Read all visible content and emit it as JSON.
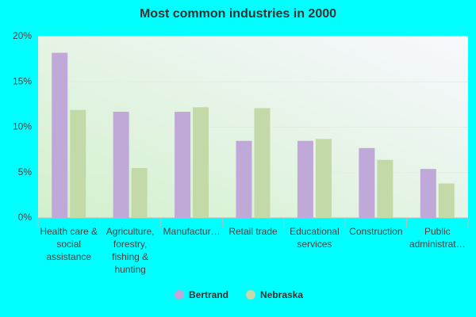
{
  "chart_data": {
    "type": "bar",
    "title": "Most common industries in 2000",
    "categories": [
      "Health care & social assistance",
      "Agriculture, forestry, fishing & hunting",
      "Manufactur…",
      "Retail trade",
      "Educational services",
      "Construction",
      "Public administrat…"
    ],
    "series": [
      {
        "name": "Bertrand",
        "color": "#c0a8d8",
        "values": [
          18.2,
          11.7,
          11.7,
          8.5,
          8.5,
          7.7,
          5.4
        ]
      },
      {
        "name": "Nebraska",
        "color": "#c4d9a8",
        "values": [
          11.9,
          5.5,
          12.2,
          12.1,
          8.7,
          6.4,
          3.8
        ]
      }
    ],
    "ylim": [
      0,
      20
    ],
    "yticks": [
      {
        "value": 0,
        "label": "0%"
      },
      {
        "value": 5,
        "label": "5%"
      },
      {
        "value": 10,
        "label": "10%"
      },
      {
        "value": 15,
        "label": "15%"
      },
      {
        "value": 20,
        "label": "20%"
      }
    ],
    "grid": true,
    "legend": "bottom"
  }
}
